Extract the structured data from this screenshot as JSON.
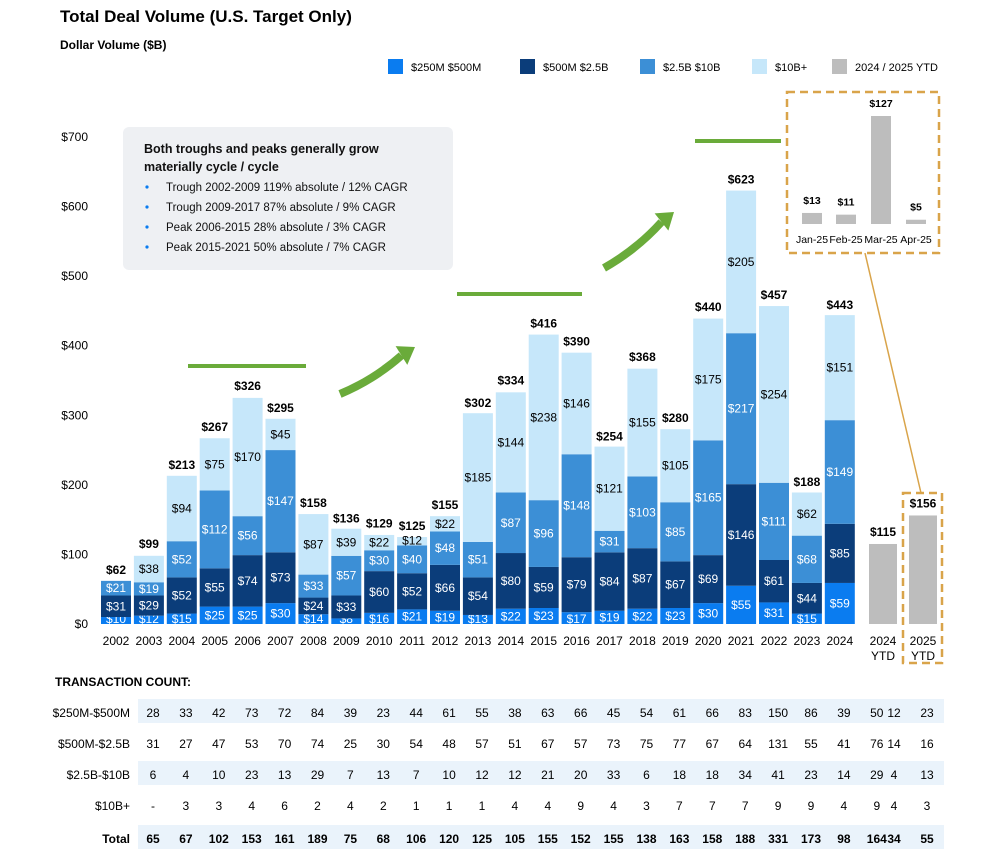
{
  "title": "Total Deal Volume (U.S. Target Only)",
  "subtitle": "Dollar Volume ($B)",
  "colors": {
    "s250": "#0a7cf0",
    "s500": "#0b3d7a",
    "s25b": "#3c8fd6",
    "s10b": "#c6e7fa",
    "ytd": "#bdbdbd",
    "arrow": "#6aab3a",
    "gold": "#d9a44a",
    "annotation_bg": "#eef0f3",
    "table_band": "#eaf3fb"
  },
  "legend": [
    {
      "label": "$250M $500M",
      "color": "#0a7cf0"
    },
    {
      "label": "$500M $2.5B",
      "color": "#0b3d7a"
    },
    {
      "label": "$2.5B $10B",
      "color": "#3c8fd6"
    },
    {
      "label": "$10B+",
      "color": "#c6e7fa"
    },
    {
      "label": "2024 / 2025 YTD",
      "color": "#bdbdbd"
    }
  ],
  "annotation": {
    "heading": [
      "Both troughs and peaks generally grow",
      "materially cycle / cycle"
    ],
    "bullets": [
      "Trough 2002-2009 119% absolute / 12% CAGR",
      "Trough 2009-2017 87% absolute / 9% CAGR",
      "Peak 2006-2015 28% absolute / 3% CAGR",
      "Peak 2015-2021 50% absolute / 7% CAGR"
    ]
  },
  "chart_data": [
    {
      "type": "bar",
      "stacked": true,
      "title": "Total Deal Volume (U.S. Target Only)",
      "ylabel": "Dollar Volume ($B)",
      "ylim": [
        0,
        700
      ],
      "yticks": [
        "$0",
        "$100",
        "$200",
        "$300",
        "$400",
        "$500",
        "$600",
        "$700"
      ],
      "categories": [
        "2002",
        "2003",
        "2004",
        "2005",
        "2006",
        "2007",
        "2008",
        "2009",
        "2010",
        "2011",
        "2012",
        "2013",
        "2014",
        "2015",
        "2016",
        "2017",
        "2018",
        "2019",
        "2020",
        "2021",
        "2022",
        "2023",
        "2024"
      ],
      "series": [
        {
          "name": "$250M $500M",
          "values": [
            10,
            12,
            15,
            25,
            25,
            30,
            14,
            8,
            16,
            21,
            19,
            13,
            22,
            23,
            17,
            19,
            22,
            23,
            30,
            55,
            31,
            15,
            59
          ],
          "labels": [
            "$10",
            "$12",
            "$15",
            "$25",
            "$25",
            "$30",
            "$14",
            "$8",
            "$16",
            "$21",
            "$19",
            "$13",
            "$22",
            "$23",
            "$17",
            "$19",
            "$22",
            "$23",
            "$30",
            "$55",
            "$31",
            "$15",
            "$59"
          ]
        },
        {
          "name": "$500M $2.5B",
          "values": [
            31,
            29,
            52,
            55,
            74,
            73,
            24,
            33,
            60,
            52,
            66,
            54,
            80,
            59,
            79,
            84,
            87,
            67,
            69,
            146,
            61,
            44,
            85
          ],
          "labels": [
            "$31",
            "$29",
            "$52",
            "$55",
            "$74",
            "$73",
            "$24",
            "$33",
            "$60",
            "$52",
            "$66",
            "$54",
            "$80",
            "$59",
            "$79",
            "$84",
            "$87",
            "$67",
            "$69",
            "$146",
            "$61",
            "$44",
            "$85"
          ]
        },
        {
          "name": "$2.5B $10B",
          "values": [
            21,
            19,
            52,
            112,
            56,
            147,
            33,
            57,
            30,
            40,
            48,
            51,
            87,
            96,
            148,
            31,
            103,
            85,
            165,
            217,
            111,
            68,
            149
          ],
          "labels": [
            "$21",
            "$19",
            "$52",
            "$112",
            "$56",
            "$147",
            "$33",
            "$57",
            "$30",
            "$40",
            "$48",
            "$51",
            "$87",
            "$96",
            "$148",
            "$31",
            "$103",
            "$85",
            "$165",
            "$217",
            "$111",
            "$68",
            "$149"
          ]
        },
        {
          "name": "$10B+",
          "values": [
            0,
            38,
            94,
            75,
            170,
            45,
            87,
            39,
            22,
            12,
            22,
            185,
            144,
            238,
            146,
            121,
            155,
            105,
            175,
            205,
            254,
            62,
            151
          ],
          "labels": [
            "",
            "$38",
            "$94",
            "$75",
            "$170",
            "$45",
            "$87",
            "$39",
            "$22",
            "$12",
            "$22",
            "$185",
            "$144",
            "$238",
            "$146",
            "$121",
            "$155",
            "$105",
            "$175",
            "$205",
            "$254",
            "$62",
            "$151"
          ]
        }
      ],
      "totals": [
        62,
        99,
        213,
        267,
        326,
        295,
        158,
        136,
        129,
        125,
        155,
        302,
        334,
        416,
        390,
        254,
        368,
        280,
        440,
        623,
        457,
        188,
        443
      ],
      "total_labels": [
        "$62",
        "$99",
        "$213",
        "$267",
        "$326",
        "$295",
        "$158",
        "$136",
        "$129",
        "$125",
        "$155",
        "$302",
        "$334",
        "$416",
        "$390",
        "$254",
        "$368",
        "$280",
        "$440",
        "$623",
        "$457",
        "$188",
        "$443"
      ],
      "ytd": [
        {
          "category": "2024 YTD",
          "line1": "2024",
          "line2": "YTD",
          "value": 115,
          "label": "$115"
        },
        {
          "category": "2025 YTD",
          "line1": "2025",
          "line2": "YTD",
          "value": 156,
          "label": "$156"
        }
      ]
    },
    {
      "type": "bar",
      "title": "",
      "categories": [
        "Jan-25",
        "Feb-25",
        "Mar-25",
        "Apr-25"
      ],
      "values": [
        13,
        11,
        127,
        5
      ],
      "labels": [
        "$13",
        "$11",
        "$127",
        "$5"
      ]
    }
  ],
  "table": {
    "title": "TRANSACTION COUNT:",
    "rows": [
      {
        "label": "$250M-$500M",
        "values": [
          "28",
          "33",
          "42",
          "73",
          "72",
          "84",
          "39",
          "23",
          "44",
          "61",
          "55",
          "38",
          "63",
          "66",
          "45",
          "54",
          "61",
          "66",
          "83",
          "150",
          "86",
          "39",
          "50",
          "12",
          "23"
        ]
      },
      {
        "label": "$500M-$2.5B",
        "values": [
          "31",
          "27",
          "47",
          "53",
          "70",
          "74",
          "25",
          "30",
          "54",
          "48",
          "57",
          "51",
          "67",
          "57",
          "73",
          "75",
          "77",
          "67",
          "64",
          "131",
          "55",
          "41",
          "76",
          "14",
          "16"
        ]
      },
      {
        "label": "$2.5B-$10B",
        "values": [
          "6",
          "4",
          "10",
          "23",
          "13",
          "29",
          "7",
          "13",
          "7",
          "10",
          "12",
          "12",
          "21",
          "20",
          "33",
          "6",
          "18",
          "18",
          "34",
          "41",
          "23",
          "14",
          "29",
          "4",
          "13"
        ]
      },
      {
        "label": "$10B+",
        "values": [
          "-",
          "3",
          "3",
          "4",
          "6",
          "2",
          "4",
          "2",
          "1",
          "1",
          "1",
          "4",
          "4",
          "9",
          "4",
          "3",
          "7",
          "7",
          "7",
          "9",
          "9",
          "4",
          "9",
          "4",
          "3"
        ]
      },
      {
        "label": "Total",
        "values": [
          "65",
          "67",
          "102",
          "153",
          "161",
          "189",
          "75",
          "68",
          "106",
          "120",
          "125",
          "105",
          "155",
          "152",
          "155",
          "138",
          "163",
          "158",
          "188",
          "331",
          "173",
          "98",
          "164",
          "34",
          "55"
        ],
        "bold": true
      }
    ]
  }
}
